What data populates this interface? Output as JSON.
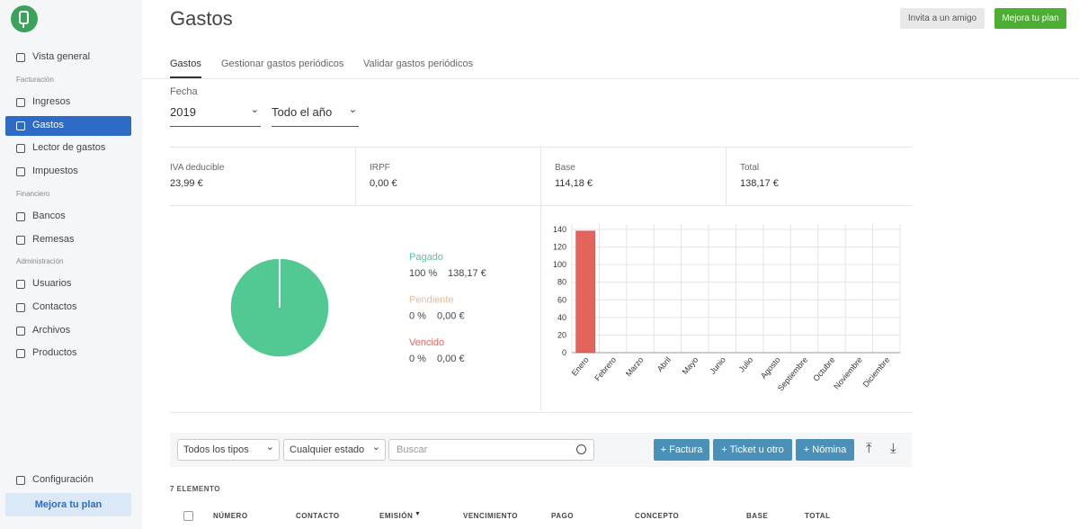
{
  "header": {
    "title": "Gastos",
    "buttons": [
      "Invita a un amigo",
      "Mejora tu plan"
    ]
  },
  "sidebar": {
    "top_item": "Vista general",
    "active": "Gastos",
    "sections": [
      {
        "title": "Facturación",
        "items": [
          "Ingresos",
          "Gastos",
          "Lector de gastos",
          "Impuestos"
        ]
      },
      {
        "title": "Financiero",
        "items": [
          "Bancos",
          "Remesas"
        ]
      },
      {
        "title": "Administración",
        "items": [
          "Usuarios",
          "Contactos",
          "Archivos",
          "Productos"
        ]
      }
    ],
    "settings": "Configuración",
    "upgrade": "Mejora tu plan"
  },
  "tabs": [
    "Gastos",
    "Gestionar gastos periódicos",
    "Validar gastos periódicos"
  ],
  "filters": {
    "label": "Fecha",
    "year": "2019",
    "period": "Todo el año"
  },
  "summary": [
    {
      "label": "IVA deducible",
      "value": "23,99 €"
    },
    {
      "label": "IRPF",
      "value": "0,00 €"
    },
    {
      "label": "Base",
      "value": "114,18 €"
    },
    {
      "label": "Total",
      "value": "138,17 €"
    }
  ],
  "chart_data": [
    {
      "type": "pie",
      "categories": [
        "Pagado",
        "Pendiente",
        "Vencido"
      ],
      "values": [
        100,
        0,
        0
      ],
      "value_labels": [
        "100 %",
        "0 %",
        "0 %"
      ],
      "amount_labels": [
        "138,17 €",
        "0,00 €",
        "0,00 €"
      ],
      "colors": [
        "#52c993",
        "#f2b98f",
        "#e2645a"
      ]
    },
    {
      "type": "bar",
      "categories": [
        "Enero",
        "Febrero",
        "Marzo",
        "Abril",
        "Mayo",
        "Junio",
        "Julio",
        "Agosto",
        "Septiembre",
        "Octubre",
        "Noviembre",
        "Diciembre"
      ],
      "values": [
        138.17,
        0,
        0,
        0,
        0,
        0,
        0,
        0,
        0,
        0,
        0,
        0
      ],
      "color": "#e2645a",
      "ylim": [
        0,
        140
      ],
      "yticks": [
        0,
        20,
        40,
        60,
        80,
        100,
        120,
        140
      ],
      "grid": true
    }
  ],
  "toolbar": {
    "selects": [
      "Todos los tipos",
      "Cualquier estado"
    ],
    "search": "Buscar",
    "buttons": [
      "Factura",
      "Ticket u otro",
      "Nómina"
    ]
  },
  "table": {
    "count": "7 ELEMENTO",
    "columns": [
      "NÚMERO",
      "CONTACTO",
      "EMISIÓN",
      "VENCIMIENTO",
      "PAGO",
      "CONCEPTO",
      "BASE",
      "TOTAL"
    ]
  }
}
